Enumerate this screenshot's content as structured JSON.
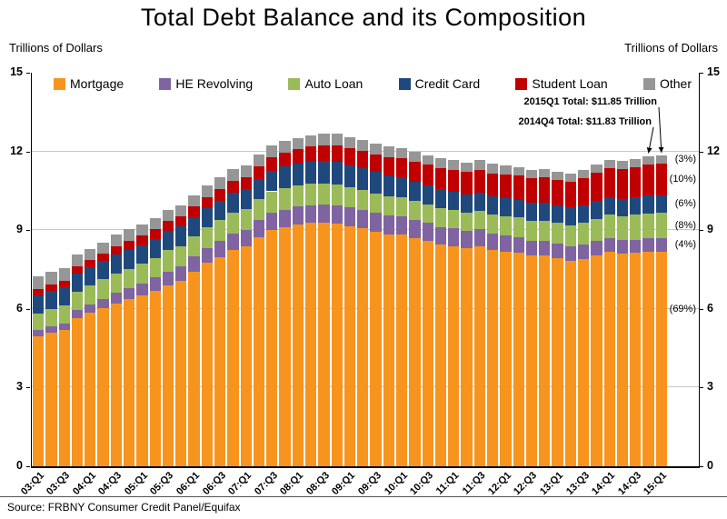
{
  "title": "Total Debt Balance and its Composition",
  "left_axis_caption": "Trillions of Dollars",
  "right_axis_caption": "Trillions of Dollars",
  "source": "Source: FRBNY Consumer Credit Panel/Equifax",
  "chart_data": {
    "type": "bar",
    "stacked": true,
    "title": "Total Debt Balance and its Composition",
    "ylabel": "Trillions of Dollars",
    "ylim": [
      0,
      15
    ],
    "yticks": [
      0,
      3,
      6,
      9,
      12,
      15
    ],
    "grid": true,
    "legend_position": "top",
    "categories": [
      "03:Q1",
      "03:Q2",
      "03:Q3",
      "03:Q4",
      "04:Q1",
      "04:Q2",
      "04:Q3",
      "04:Q4",
      "05:Q1",
      "05:Q2",
      "05:Q3",
      "05:Q4",
      "06:Q1",
      "06:Q2",
      "06:Q3",
      "06:Q4",
      "07:Q1",
      "07:Q2",
      "07:Q3",
      "07:Q4",
      "08:Q1",
      "08:Q2",
      "08:Q3",
      "08:Q4",
      "09:Q1",
      "09:Q2",
      "09:Q3",
      "09:Q4",
      "10:Q1",
      "10:Q2",
      "10:Q3",
      "10:Q4",
      "11:Q1",
      "11:Q2",
      "11:Q3",
      "11:Q4",
      "12:Q1",
      "12:Q2",
      "12:Q3",
      "12:Q4",
      "13:Q1",
      "13:Q2",
      "13:Q3",
      "13:Q4",
      "14:Q1",
      "14:Q2",
      "14:Q3",
      "14:Q4",
      "15:Q1"
    ],
    "xtick_labels": [
      "03:Q1",
      "03:Q3",
      "04:Q1",
      "04:Q3",
      "05:Q1",
      "05:Q3",
      "06:Q1",
      "06:Q3",
      "07:Q1",
      "07:Q3",
      "08:Q1",
      "08:Q3",
      "09:Q1",
      "09:Q3",
      "10:Q1",
      "10:Q3",
      "11:Q1",
      "11:Q3",
      "12:Q1",
      "12:Q3",
      "13:Q1",
      "13:Q3",
      "14:Q1",
      "14:Q3",
      "15:Q1"
    ],
    "series": [
      {
        "name": "Mortgage",
        "color": "#F7941E",
        "values": [
          4.94,
          5.08,
          5.18,
          5.66,
          5.84,
          6.02,
          6.21,
          6.36,
          6.51,
          6.7,
          6.9,
          7.07,
          7.43,
          7.76,
          7.98,
          8.24,
          8.38,
          8.74,
          9.0,
          9.1,
          9.23,
          9.27,
          9.29,
          9.26,
          9.15,
          9.06,
          8.94,
          8.85,
          8.84,
          8.71,
          8.6,
          8.45,
          8.4,
          8.32,
          8.4,
          8.25,
          8.19,
          8.15,
          8.03,
          8.03,
          7.93,
          7.84,
          7.9,
          8.05,
          8.17,
          8.1,
          8.13,
          8.17,
          8.17
        ]
      },
      {
        "name": "HE Revolving",
        "color": "#8064A2",
        "values": [
          0.24,
          0.26,
          0.27,
          0.3,
          0.33,
          0.37,
          0.4,
          0.44,
          0.47,
          0.49,
          0.52,
          0.54,
          0.56,
          0.57,
          0.6,
          0.62,
          0.62,
          0.64,
          0.66,
          0.68,
          0.68,
          0.69,
          0.69,
          0.7,
          0.71,
          0.71,
          0.71,
          0.7,
          0.69,
          0.68,
          0.67,
          0.67,
          0.66,
          0.64,
          0.63,
          0.62,
          0.61,
          0.59,
          0.57,
          0.56,
          0.55,
          0.54,
          0.54,
          0.53,
          0.53,
          0.52,
          0.51,
          0.51,
          0.51
        ]
      },
      {
        "name": "Auto Loan",
        "color": "#9BBB59",
        "values": [
          0.64,
          0.66,
          0.69,
          0.7,
          0.72,
          0.74,
          0.75,
          0.73,
          0.74,
          0.76,
          0.81,
          0.79,
          0.78,
          0.79,
          0.81,
          0.82,
          0.8,
          0.81,
          0.82,
          0.82,
          0.81,
          0.81,
          0.81,
          0.79,
          0.77,
          0.76,
          0.75,
          0.74,
          0.72,
          0.71,
          0.71,
          0.71,
          0.71,
          0.71,
          0.72,
          0.73,
          0.74,
          0.75,
          0.77,
          0.78,
          0.79,
          0.81,
          0.85,
          0.86,
          0.88,
          0.91,
          0.94,
          0.96,
          0.97
        ]
      },
      {
        "name": "Credit Card",
        "color": "#1F497D",
        "values": [
          0.69,
          0.69,
          0.69,
          0.7,
          0.7,
          0.7,
          0.71,
          0.72,
          0.71,
          0.72,
          0.73,
          0.73,
          0.72,
          0.73,
          0.74,
          0.75,
          0.75,
          0.77,
          0.79,
          0.82,
          0.82,
          0.84,
          0.85,
          0.87,
          0.84,
          0.82,
          0.81,
          0.79,
          0.76,
          0.74,
          0.73,
          0.73,
          0.7,
          0.69,
          0.69,
          0.7,
          0.68,
          0.67,
          0.67,
          0.68,
          0.66,
          0.67,
          0.67,
          0.68,
          0.66,
          0.67,
          0.68,
          0.7,
          0.68
        ]
      },
      {
        "name": "Student Loan",
        "color": "#C00000",
        "values": [
          0.24,
          0.24,
          0.25,
          0.25,
          0.26,
          0.26,
          0.33,
          0.35,
          0.36,
          0.38,
          0.39,
          0.39,
          0.41,
          0.42,
          0.44,
          0.45,
          0.47,
          0.48,
          0.5,
          0.52,
          0.54,
          0.57,
          0.59,
          0.62,
          0.64,
          0.66,
          0.69,
          0.71,
          0.74,
          0.76,
          0.78,
          0.81,
          0.84,
          0.85,
          0.87,
          0.87,
          0.9,
          0.91,
          0.94,
          0.97,
          0.99,
          0.99,
          1.03,
          1.08,
          1.11,
          1.12,
          1.13,
          1.16,
          1.19
        ]
      },
      {
        "name": "Other",
        "color": "#969696",
        "values": [
          0.48,
          0.48,
          0.48,
          0.45,
          0.44,
          0.43,
          0.43,
          0.43,
          0.42,
          0.42,
          0.43,
          0.43,
          0.43,
          0.44,
          0.44,
          0.45,
          0.44,
          0.44,
          0.45,
          0.45,
          0.44,
          0.44,
          0.45,
          0.45,
          0.44,
          0.42,
          0.41,
          0.4,
          0.39,
          0.38,
          0.37,
          0.36,
          0.35,
          0.35,
          0.35,
          0.35,
          0.34,
          0.33,
          0.33,
          0.32,
          0.31,
          0.31,
          0.31,
          0.31,
          0.31,
          0.32,
          0.32,
          0.33,
          0.33
        ]
      }
    ],
    "annotations": [
      {
        "text": "2015Q1 Total: $11.85 Trillion",
        "target_category": "15:Q1",
        "target_index": 48
      },
      {
        "text": "2014Q4 Total: $11.83 Trillion",
        "target_category": "14:Q4",
        "target_index": 47
      }
    ],
    "share_labels": [
      {
        "text": "(3%)",
        "value": 11.69
      },
      {
        "text": "(10%)",
        "value": 10.92
      },
      {
        "text": "(6%)",
        "value": 9.99
      },
      {
        "text": "(8%)",
        "value": 9.16
      },
      {
        "text": "(4%)",
        "value": 8.42
      },
      {
        "text": "(69%)",
        "value": 5.95
      }
    ]
  }
}
